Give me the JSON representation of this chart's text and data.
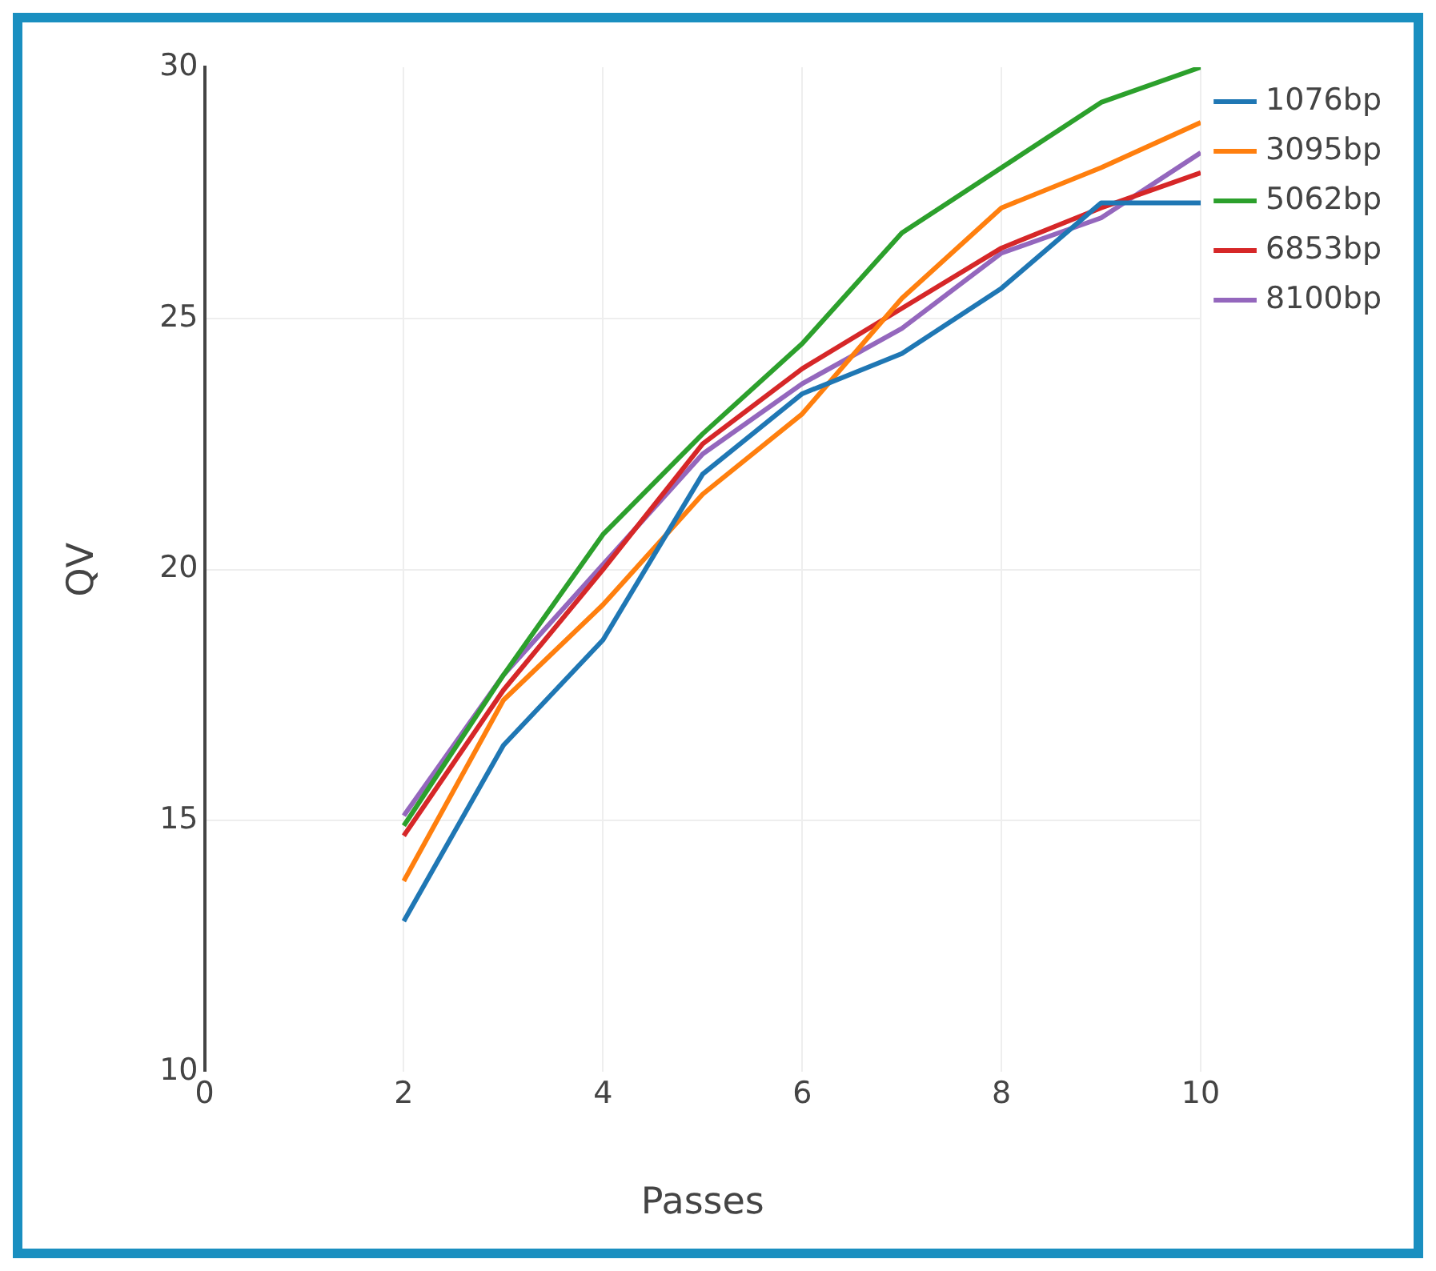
{
  "chart_data": {
    "type": "line",
    "xlabel": "Passes",
    "ylabel": "QV",
    "x": [
      2,
      3,
      4,
      5,
      6,
      7,
      8,
      9,
      10
    ],
    "xlim": [
      0,
      10
    ],
    "xticks": [
      0,
      2,
      4,
      6,
      8,
      10
    ],
    "ylim": [
      10,
      30
    ],
    "yticks": [
      10,
      15,
      20,
      25,
      30
    ],
    "grid": true,
    "legend": "top right",
    "marker": "none",
    "line_style": "solid",
    "series": [
      {
        "name": "1076bp",
        "color": "#1f77b4",
        "values": [
          13.0,
          16.5,
          18.6,
          21.9,
          23.5,
          24.3,
          25.6,
          27.3,
          27.3
        ]
      },
      {
        "name": "3095bp",
        "color": "#ff7f0e",
        "values": [
          13.8,
          17.4,
          19.3,
          21.5,
          23.1,
          25.4,
          27.2,
          28.0,
          28.9
        ]
      },
      {
        "name": "5062bp",
        "color": "#2ca02c",
        "values": [
          14.9,
          17.9,
          20.7,
          22.7,
          24.5,
          26.7,
          28.0,
          29.3,
          30.0
        ]
      },
      {
        "name": "6853bp",
        "color": "#d62728",
        "values": [
          14.7,
          17.6,
          20.0,
          22.5,
          24.0,
          25.2,
          26.4,
          27.2,
          27.9
        ]
      },
      {
        "name": "8100bp",
        "color": "#9467bd",
        "values": [
          15.1,
          17.9,
          20.1,
          22.3,
          23.7,
          24.8,
          26.3,
          27.0,
          28.3
        ]
      }
    ]
  }
}
